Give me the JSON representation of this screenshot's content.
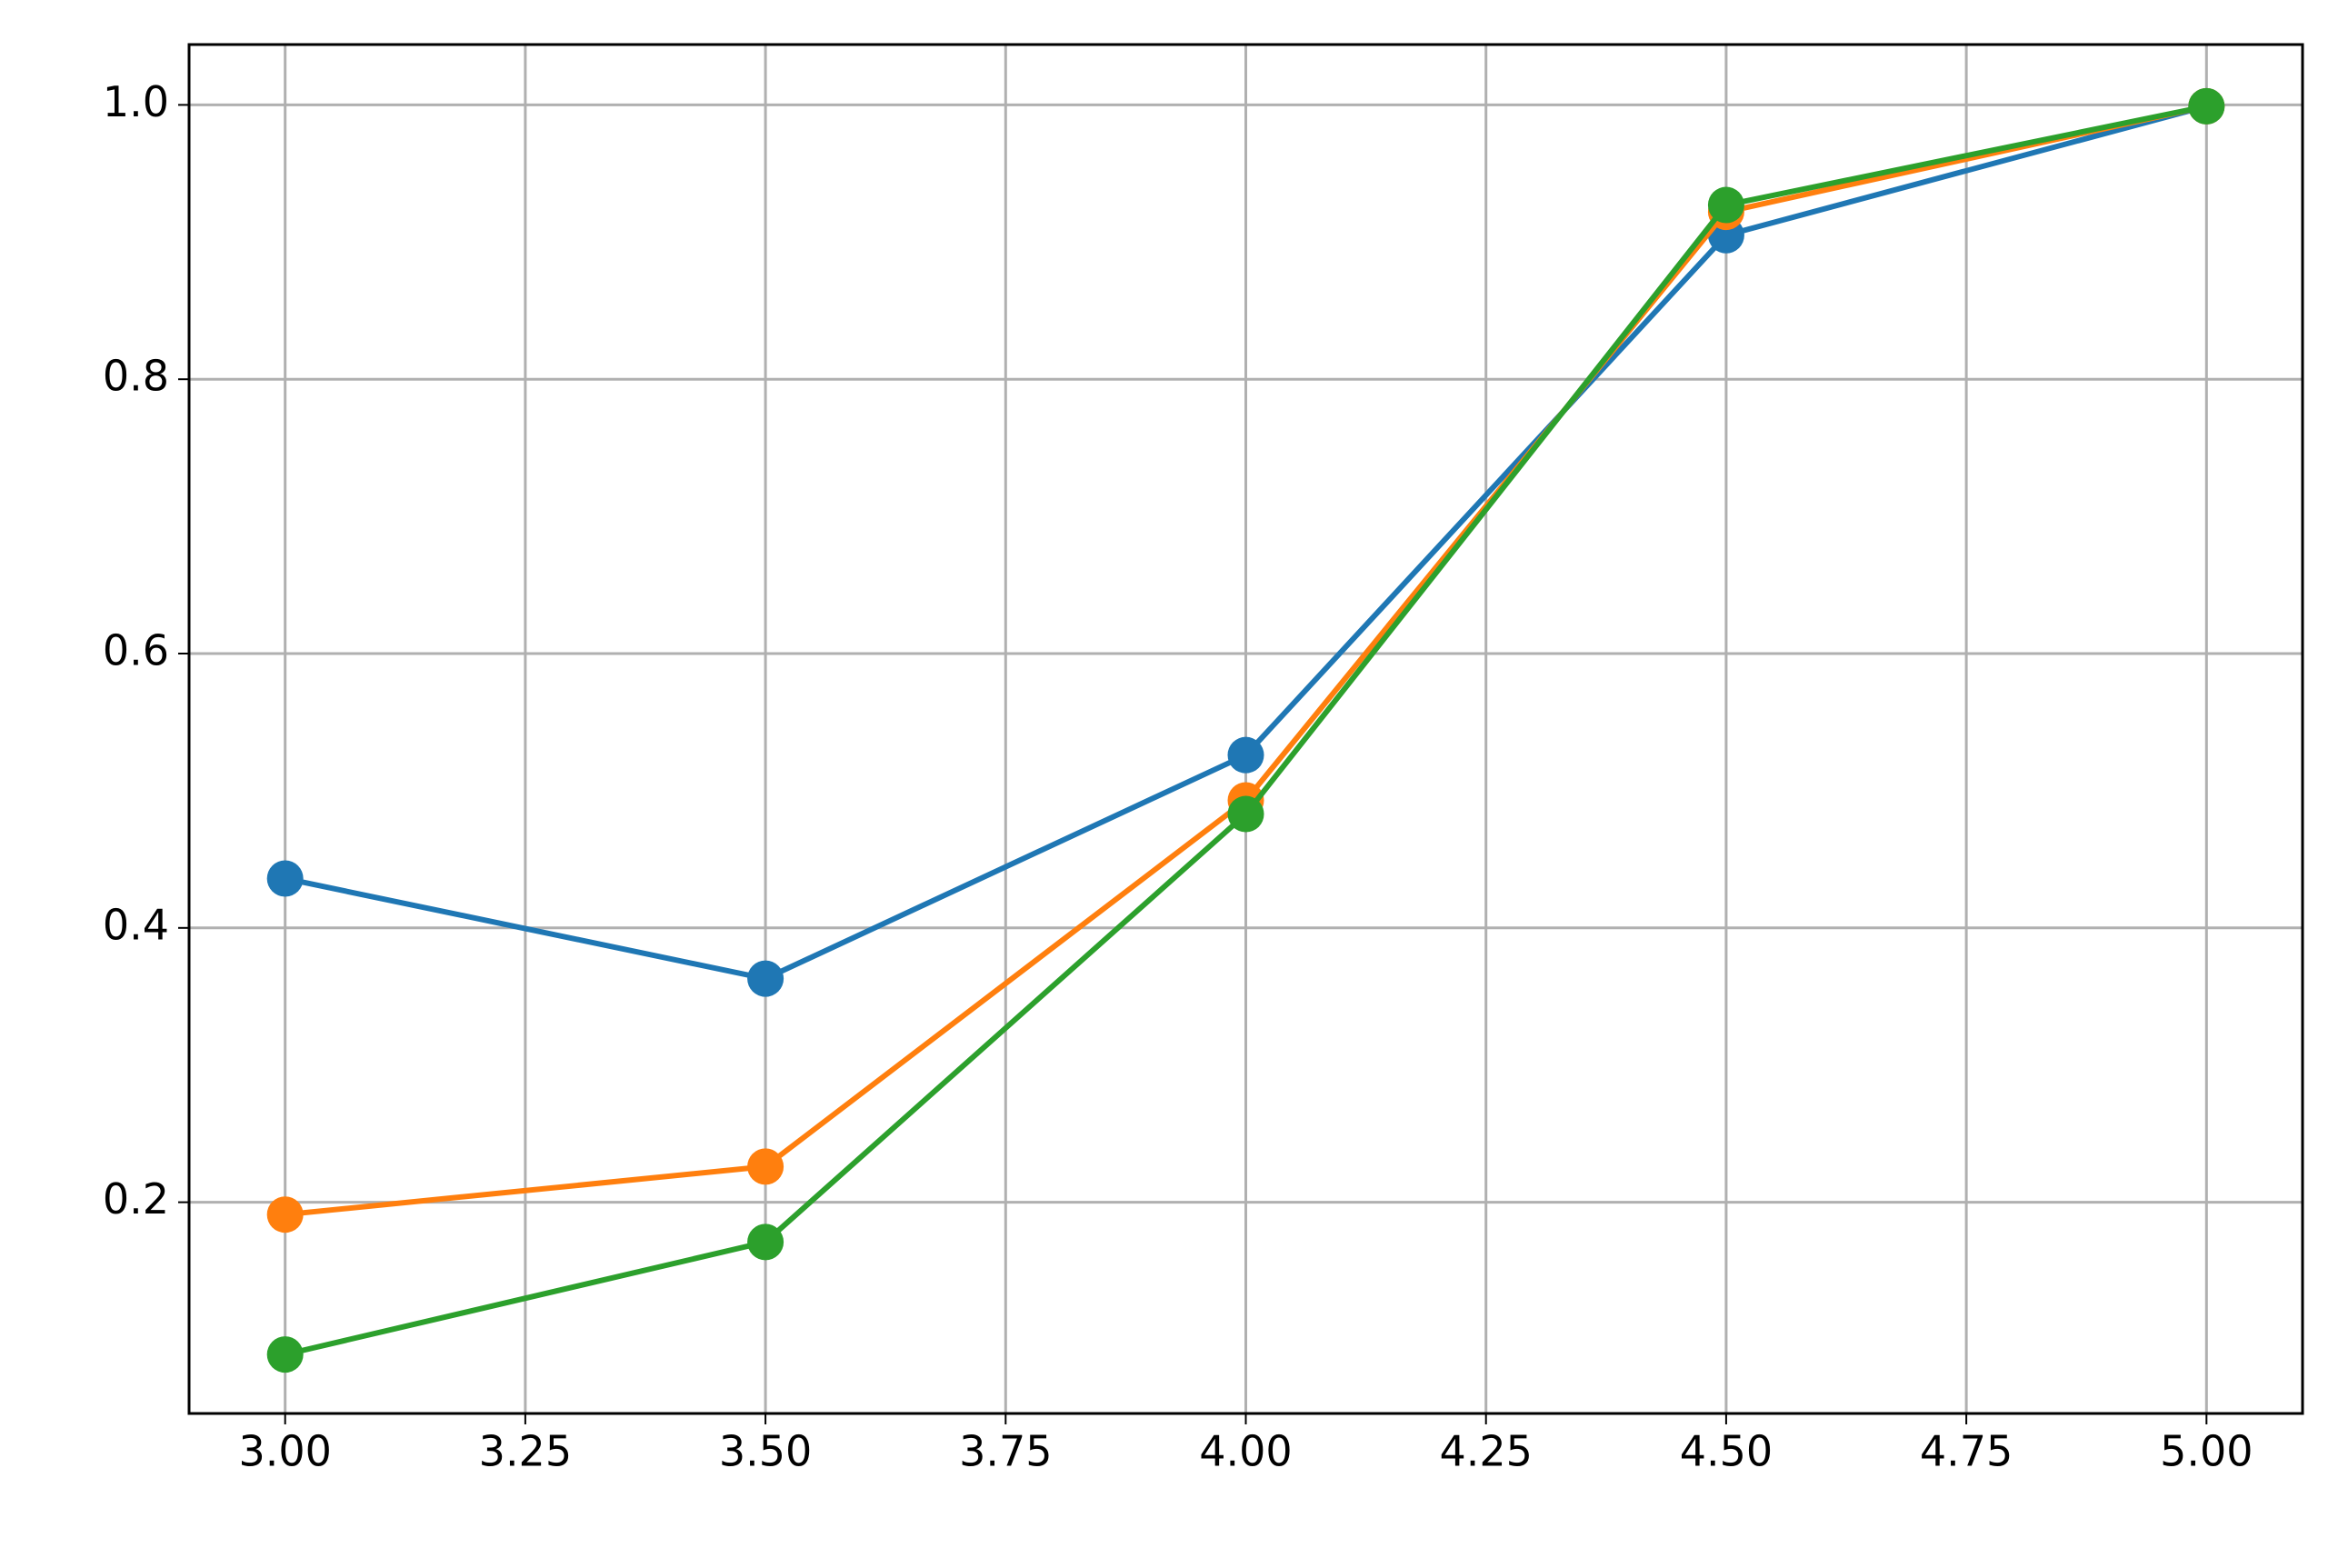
{
  "chart_data": {
    "type": "line",
    "x": [
      3.0,
      3.5,
      4.0,
      4.5,
      5.0
    ],
    "series": [
      {
        "color": "#1f77b4",
        "values": [
          0.436,
          0.363,
          0.526,
          0.905,
          0.999
        ]
      },
      {
        "color": "#ff7f0e",
        "values": [
          0.191,
          0.226,
          0.493,
          0.922,
          0.999
        ]
      },
      {
        "color": "#2ca02c",
        "values": [
          0.089,
          0.171,
          0.483,
          0.927,
          0.999
        ]
      }
    ],
    "xlim": [
      2.9,
      5.1
    ],
    "xticks": [
      {
        "value": 3.0,
        "label": "3.00"
      },
      {
        "value": 3.25,
        "label": "3.25"
      },
      {
        "value": 3.5,
        "label": "3.50"
      },
      {
        "value": 3.75,
        "label": "3.75"
      },
      {
        "value": 4.0,
        "label": "4.00"
      },
      {
        "value": 4.25,
        "label": "4.25"
      },
      {
        "value": 4.5,
        "label": "4.50"
      },
      {
        "value": 4.75,
        "label": "4.75"
      },
      {
        "value": 5.0,
        "label": "5.00"
      }
    ],
    "ylim": [
      0.046,
      1.044
    ],
    "yticks": [
      0.2,
      0.4,
      0.6,
      0.8,
      {
        "value": 1.0,
        "label": "1.0"
      }
    ],
    "grid": true
  }
}
